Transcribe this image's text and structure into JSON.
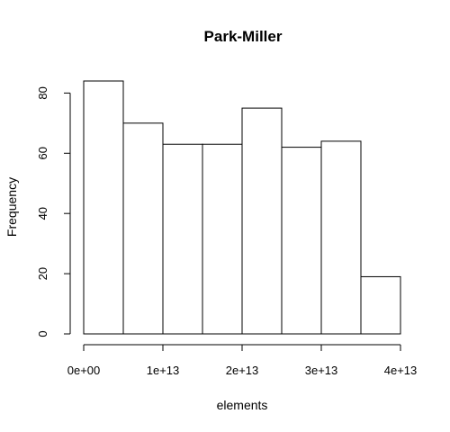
{
  "chart_data": {
    "type": "bar",
    "title": "Park-Miller",
    "xlabel": "elements",
    "ylabel": "Frequency",
    "bins": [
      {
        "start": 0,
        "end": 5000000000000.0,
        "count": 84
      },
      {
        "start": 5000000000000.0,
        "end": 10000000000000.0,
        "count": 70
      },
      {
        "start": 10000000000000.0,
        "end": 15000000000000.0,
        "count": 63
      },
      {
        "start": 15000000000000.0,
        "end": 20000000000000.0,
        "count": 63
      },
      {
        "start": 20000000000000.0,
        "end": 25000000000000.0,
        "count": 75
      },
      {
        "start": 25000000000000.0,
        "end": 30000000000000.0,
        "count": 62
      },
      {
        "start": 30000000000000.0,
        "end": 35000000000000.0,
        "count": 64
      },
      {
        "start": 35000000000000.0,
        "end": 40000000000000.0,
        "count": 19
      }
    ],
    "xlim": [
      0,
      40000000000000.0
    ],
    "ylim": [
      0,
      84
    ],
    "x_ticks": [
      0,
      10000000000000.0,
      20000000000000.0,
      30000000000000.0,
      40000000000000.0
    ],
    "x_tick_labels": [
      "0e+00",
      "1e+13",
      "2e+13",
      "3e+13",
      "4e+13"
    ],
    "y_ticks": [
      0,
      20,
      40,
      60,
      80
    ],
    "y_tick_labels": [
      "0",
      "20",
      "40",
      "60",
      "80"
    ],
    "grid": false,
    "legend": "none",
    "bar_fill": "#ffffff",
    "bar_stroke": "#000000"
  }
}
